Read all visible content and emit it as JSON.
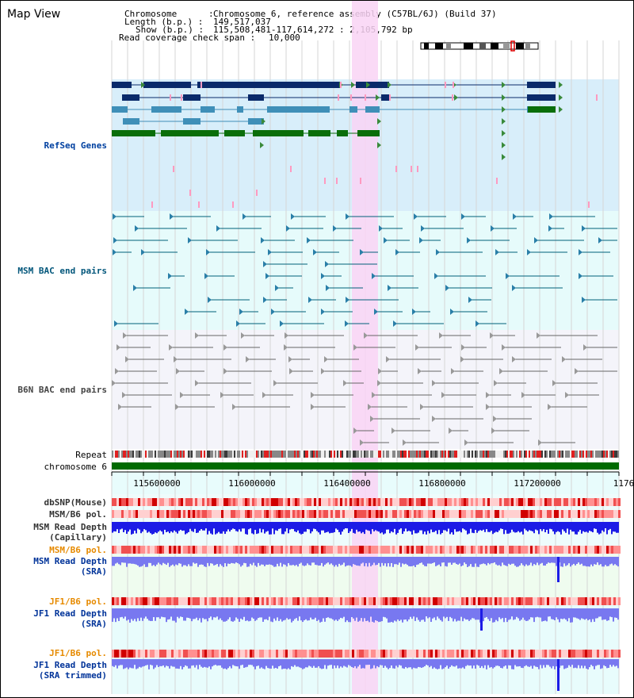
{
  "header": {
    "title": "Map View",
    "chromosome_label": "Chromosome      :",
    "chromosome_value": "Chromosome 6, reference assembly (C57BL/6J) (Build 37)",
    "length_label": "Length (b.p.) :",
    "length_value": "149,517,037",
    "show_label": "Show (b.p.) :",
    "show_value": "115,508,481-117,614,272 : 2,105,792 bp",
    "coverage_label": "Read coverage check span :",
    "coverage_value": "10,000"
  },
  "track_labels": {
    "refseq": "RefSeq Genes",
    "msm_bac": "MSM BAC end pairs",
    "b6n_bac": "B6N BAC end pairs",
    "repeat": "Repeat",
    "chromosome": "chromosome 6",
    "dbsnp": "dbSNP(Mouse)",
    "msm_pol1": "MSM/B6 pol.",
    "msm_depth_cap_1": "MSM Read Depth",
    "msm_depth_cap_2": "(Capillary)",
    "msm_pol2": "MSM/B6 pol.",
    "msm_depth_sra_1": "MSM Read Depth",
    "msm_depth_sra_2": "(SRA)",
    "jf1_pol1": "JF1/B6 pol.",
    "jf1_depth_1": "JF1 Read Depth",
    "jf1_depth_2": "(SRA)",
    "jf1_pol2": "JF1/B6 pol.",
    "jf1_trim_1": "JF1 Read Depth",
    "jf1_trim_2": "(SRA trimmed)"
  },
  "axis_ticks": [
    "115600000",
    "116000000",
    "116400000",
    "116800000",
    "117200000",
    "1176"
  ],
  "colors": {
    "refseq_bg": "#d8eefa",
    "bac_bg": "#e6fbfb",
    "b6n_bg": "#f4f4fa",
    "highlight": "#f9d3f4",
    "chromosome_bar": "#006a00",
    "depth_blue": "#1c1ce6",
    "depth_light": "#7878f0",
    "msm_label": "#003399",
    "orange_label": "#e68a00",
    "track_blue_label": "#0040a0"
  }
}
